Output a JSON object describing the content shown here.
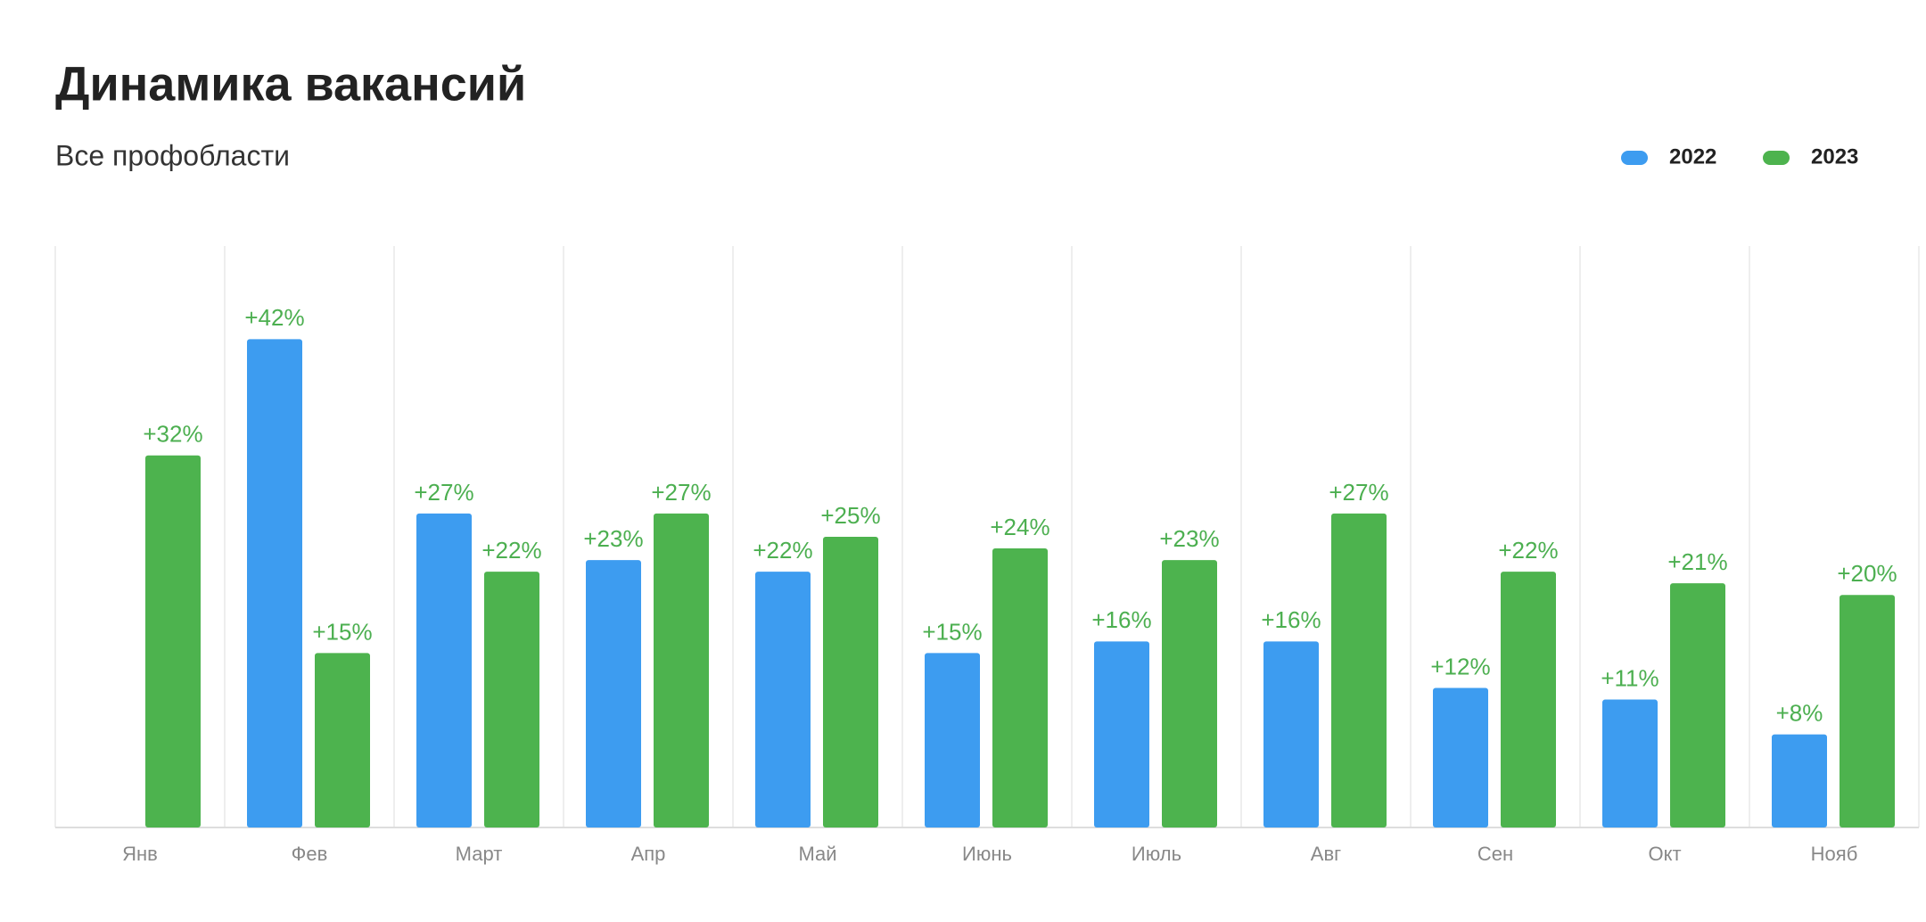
{
  "chart_data": {
    "type": "bar",
    "title": "Динамика вакансий",
    "subtitle": "Все профобласти",
    "categories": [
      "Янв",
      "Фев",
      "Март",
      "Апр",
      "Май",
      "Июнь",
      "Июль",
      "Авг",
      "Сен",
      "Окт",
      "Нояб"
    ],
    "series": [
      {
        "name": "2022",
        "color": "#3d9cf0",
        "values": [
          null,
          42,
          27,
          23,
          22,
          15,
          16,
          16,
          12,
          11,
          8
        ],
        "value_labels": [
          null,
          "+42%",
          "+27%",
          "+23%",
          "+22%",
          "+15%",
          "+16%",
          "+16%",
          "+12%",
          "+11%",
          "+8%"
        ]
      },
      {
        "name": "2023",
        "color": "#4db34e",
        "values": [
          32,
          15,
          22,
          27,
          25,
          24,
          23,
          27,
          22,
          21,
          20
        ],
        "value_labels": [
          "+32%",
          "+15%",
          "+22%",
          "+27%",
          "+25%",
          "+24%",
          "+23%",
          "+27%",
          "+22%",
          "+21%",
          "+20%"
        ]
      }
    ],
    "ylim": [
      0,
      50
    ],
    "legend": "top-right"
  }
}
